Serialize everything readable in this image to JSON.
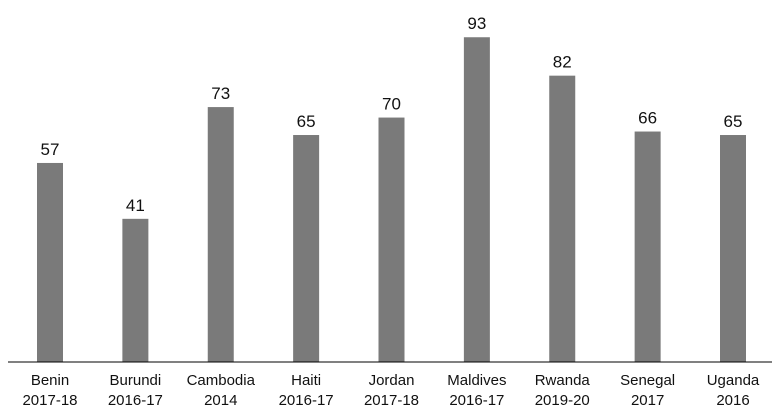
{
  "chart_data": {
    "type": "bar",
    "categories": [
      [
        "Benin",
        "2017-18"
      ],
      [
        "Burundi",
        "2016-17"
      ],
      [
        "Cambodia",
        "2014"
      ],
      [
        "Haiti",
        "2016-17"
      ],
      [
        "Jordan",
        "2017-18"
      ],
      [
        "Maldives",
        "2016-17"
      ],
      [
        "Rwanda",
        "2019-20"
      ],
      [
        "Senegal",
        "2017"
      ],
      [
        "Uganda",
        "2016"
      ]
    ],
    "values": [
      57,
      41,
      73,
      65,
      70,
      93,
      82,
      66,
      65
    ],
    "value_labels": [
      "57",
      "41",
      "73",
      "65",
      "70",
      "93",
      "82",
      "66",
      "65"
    ],
    "title": "",
    "xlabel": "",
    "ylabel": "",
    "ylim": [
      0,
      100
    ],
    "grid": false,
    "legend": "none",
    "data_labels": "above-bar",
    "colors": {
      "bar": "#7a7a7a",
      "axis": "#000000",
      "text": "#111111"
    }
  }
}
